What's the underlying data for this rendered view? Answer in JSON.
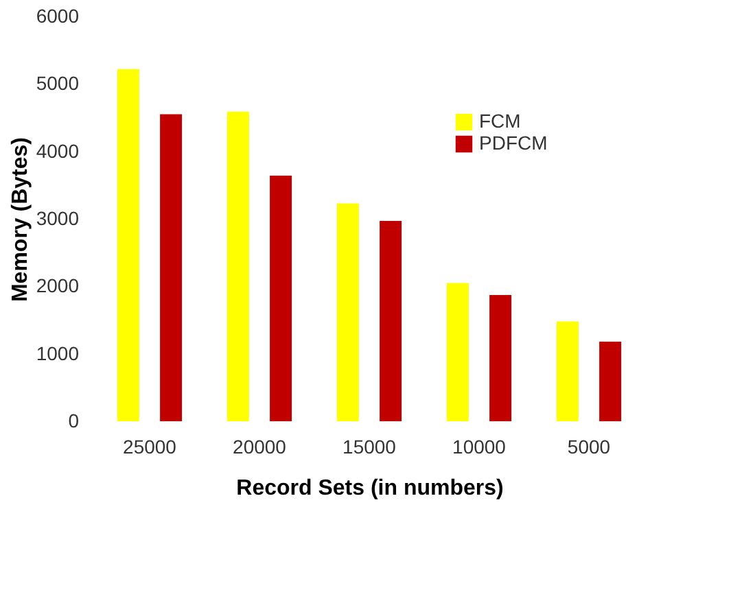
{
  "chart_data": {
    "type": "bar",
    "xlabel": "Record Sets (in numbers)",
    "ylabel": "Memory (Bytes)",
    "categories": [
      "25000",
      "20000",
      "15000",
      "10000",
      "5000"
    ],
    "series": [
      {
        "name": "FCM",
        "color": "#ffff00",
        "values": [
          5220,
          4590,
          3230,
          2050,
          1480
        ]
      },
      {
        "name": "PDFCM",
        "color": "#c00000",
        "values": [
          4550,
          3640,
          2970,
          1870,
          1180
        ]
      }
    ],
    "ylim": [
      0,
      6000
    ],
    "yticks": [
      0,
      1000,
      2000,
      3000,
      4000,
      5000,
      6000
    ],
    "grid": false,
    "legend": "top right"
  }
}
